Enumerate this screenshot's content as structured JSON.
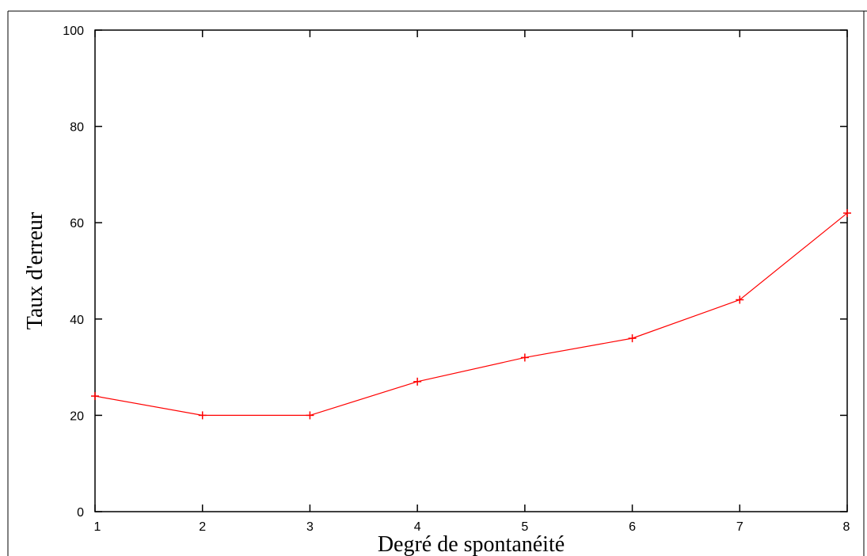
{
  "chart_data": {
    "type": "line",
    "title": "",
    "xlabel": "Degré de spontanéité",
    "ylabel": "Taux d'erreur",
    "xlim": [
      1,
      8
    ],
    "ylim": [
      0,
      100
    ],
    "xticks": [
      1,
      2,
      3,
      4,
      5,
      6,
      7,
      8
    ],
    "yticks": [
      0,
      20,
      40,
      60,
      80,
      100
    ],
    "grid": false,
    "legend": "none",
    "series": [
      {
        "color": "#ff0000",
        "marker": "plus",
        "x": [
          1,
          2,
          3,
          4,
          5,
          6,
          7,
          8
        ],
        "y": [
          24,
          20,
          20,
          27,
          32,
          36,
          44,
          62
        ]
      }
    ]
  }
}
